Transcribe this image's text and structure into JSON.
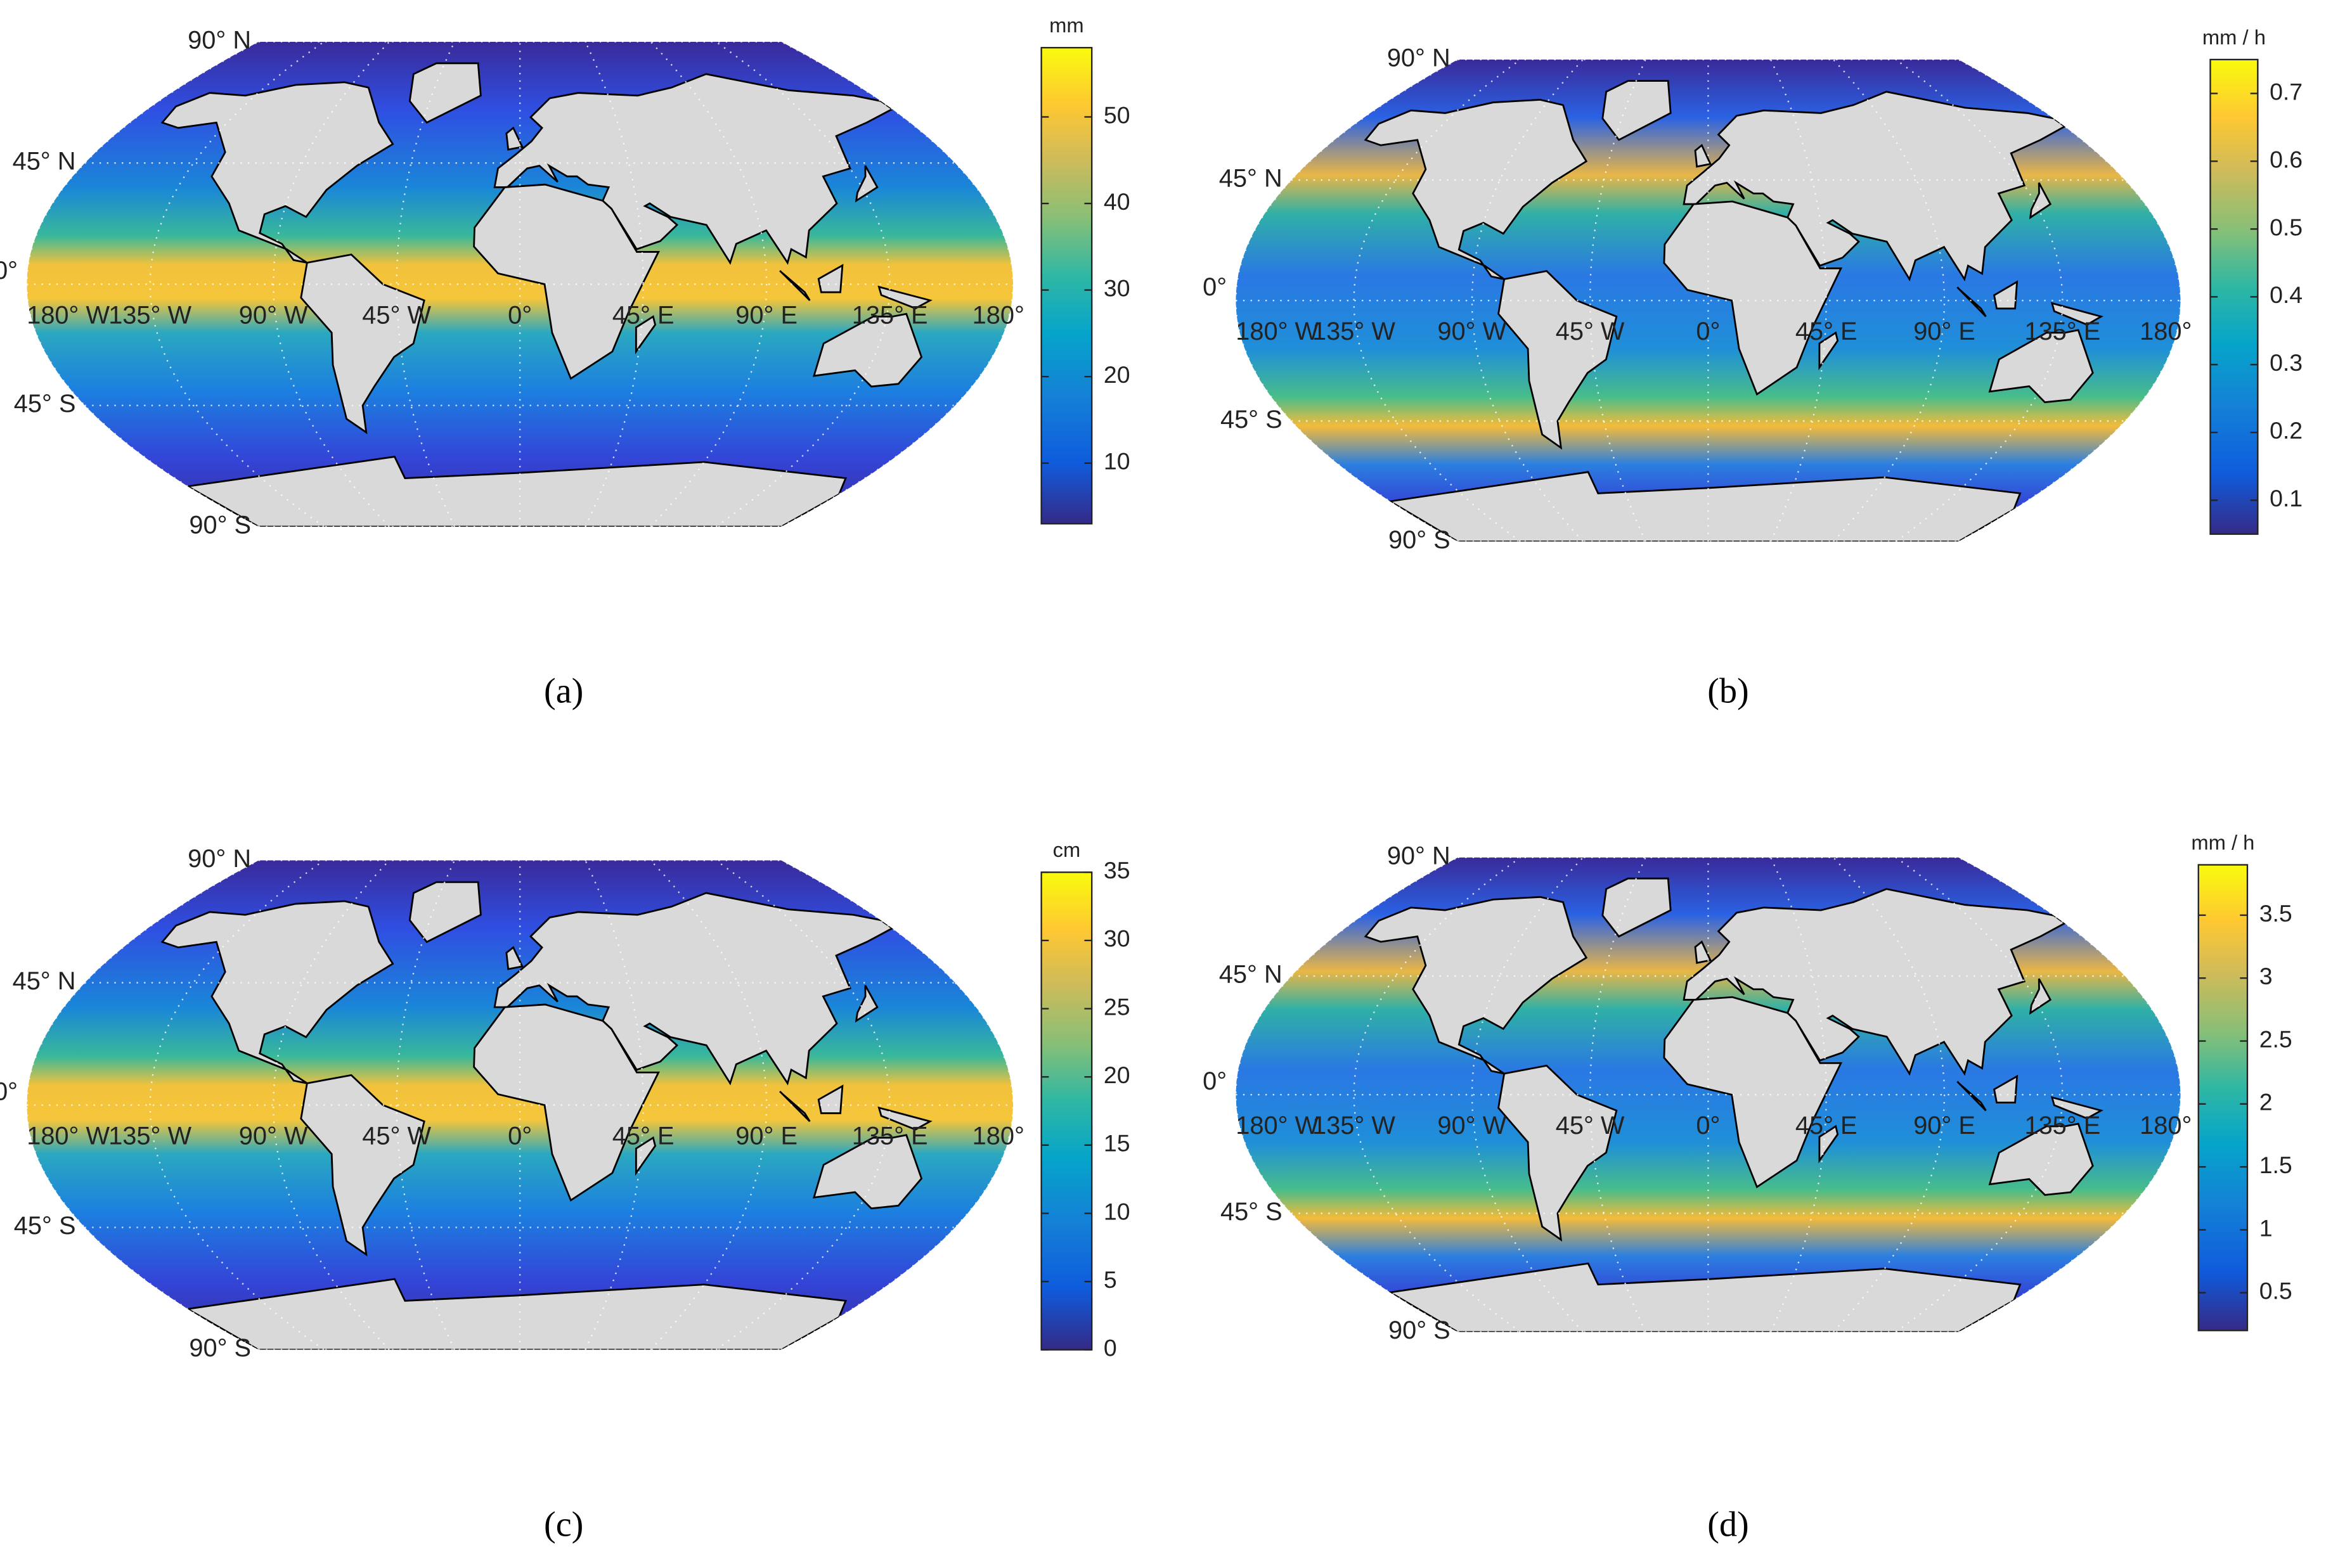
{
  "grid_labels": {
    "lat": [
      "90° N",
      "45° N",
      "0°",
      "45° S",
      "90° S"
    ],
    "lon": [
      "180° W",
      "135° W",
      "90° W",
      "45° W",
      "0°",
      "45° E",
      "90° E",
      "135° E",
      "180°"
    ]
  },
  "panels": [
    {
      "caption": "(a)",
      "unit": "mm",
      "clim": [
        3,
        58
      ],
      "cticks": [
        10,
        20,
        30,
        40,
        50
      ]
    },
    {
      "caption": "(b)",
      "unit": "mm / h",
      "clim": [
        0.05,
        0.75
      ],
      "cticks": [
        0.1,
        0.2,
        0.3,
        0.4,
        0.5,
        0.6,
        0.7
      ]
    },
    {
      "caption": "(c)",
      "unit": "cm",
      "clim": [
        0,
        35
      ],
      "cticks": [
        0,
        5,
        10,
        15,
        20,
        25,
        30,
        35
      ]
    },
    {
      "caption": "(d)",
      "unit": "mm / h",
      "clim": [
        0.2,
        3.9
      ],
      "cticks": [
        0.5,
        1,
        1.5,
        2,
        2.5,
        3,
        3.5
      ]
    }
  ]
}
